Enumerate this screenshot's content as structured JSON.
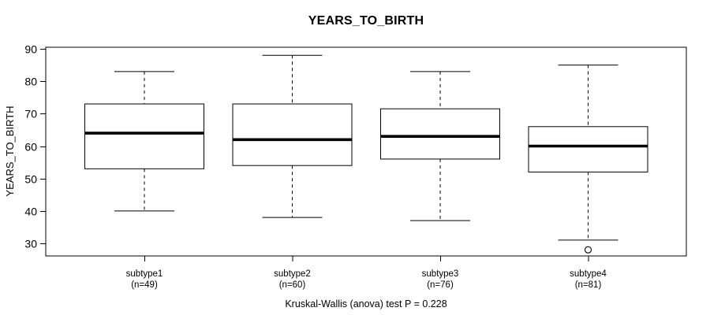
{
  "title": "YEARS_TO_BIRTH",
  "chart_data": {
    "type": "boxplot",
    "title": "YEARS_TO_BIRTH",
    "xlabel": "",
    "ylabel": "YEARS_TO_BIRTH",
    "ylim": [
      26,
      91
    ],
    "yticks": [
      30,
      40,
      50,
      60,
      70,
      80,
      90
    ],
    "grid": false,
    "legend": null,
    "annotation": "Kruskal-Wallis (anova) test P = 0.228",
    "categories": [
      "subtype1",
      "subtype2",
      "subtype3",
      "subtype4"
    ],
    "series": [
      {
        "category": "subtype1",
        "n": 49,
        "n_label": "(n=49)",
        "whisker_low": 40,
        "q1": 53,
        "median": 64,
        "q3": 73,
        "whisker_high": 83,
        "outliers": []
      },
      {
        "category": "subtype2",
        "n": 60,
        "n_label": "(n=60)",
        "whisker_low": 38,
        "q1": 54,
        "median": 62,
        "q3": 73,
        "whisker_high": 88,
        "outliers": []
      },
      {
        "category": "subtype3",
        "n": 76,
        "n_label": "(n=76)",
        "whisker_low": 37,
        "q1": 56,
        "median": 63,
        "q3": 71.5,
        "whisker_high": 83,
        "outliers": []
      },
      {
        "category": "subtype4",
        "n": 81,
        "n_label": "(n=81)",
        "whisker_low": 31,
        "q1": 52,
        "median": 60,
        "q3": 66,
        "whisker_high": 85,
        "outliers": [
          28
        ]
      }
    ],
    "colors": {
      "line": "#000000",
      "box_fill": "#ffffff",
      "background": "#ffffff",
      "text": "#000000"
    }
  }
}
